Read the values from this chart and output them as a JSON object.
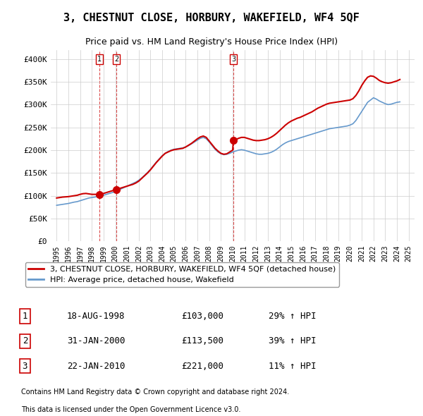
{
  "title": "3, CHESTNUT CLOSE, HORBURY, WAKEFIELD, WF4 5QF",
  "subtitle": "Price paid vs. HM Land Registry's House Price Index (HPI)",
  "transactions": [
    {
      "label": "1",
      "date": "18-AUG-1998",
      "price": 103000,
      "hpi_pct": "29% ↑ HPI",
      "x": 1998.63
    },
    {
      "label": "2",
      "date": "31-JAN-2000",
      "price": 113500,
      "hpi_pct": "39% ↑ HPI",
      "x": 2000.08
    },
    {
      "label": "3",
      "date": "22-JAN-2010",
      "price": 221000,
      "hpi_pct": "11% ↑ HPI",
      "x": 2010.06
    }
  ],
  "legend_property": "3, CHESTNUT CLOSE, HORBURY, WAKEFIELD, WF4 5QF (detached house)",
  "legend_hpi": "HPI: Average price, detached house, Wakefield",
  "footnote1": "Contains HM Land Registry data © Crown copyright and database right 2024.",
  "footnote2": "This data is licensed under the Open Government Licence v3.0.",
  "ylim": [
    0,
    420000
  ],
  "yticks": [
    0,
    50000,
    100000,
    150000,
    200000,
    250000,
    300000,
    350000,
    400000
  ],
  "ytick_labels": [
    "£0",
    "£50K",
    "£100K",
    "£150K",
    "£200K",
    "£250K",
    "£300K",
    "£350K",
    "£400K"
  ],
  "property_line_color": "#cc0000",
  "hpi_line_color": "#6699cc",
  "background_color": "#ffffff",
  "grid_color": "#cccccc",
  "hpi_data_x": [
    1995,
    1995.25,
    1995.5,
    1995.75,
    1996,
    1996.25,
    1996.5,
    1996.75,
    1997,
    1997.25,
    1997.5,
    1997.75,
    1998,
    1998.25,
    1998.5,
    1998.75,
    1999,
    1999.25,
    1999.5,
    1999.75,
    2000,
    2000.25,
    2000.5,
    2000.75,
    2001,
    2001.25,
    2001.5,
    2001.75,
    2002,
    2002.25,
    2002.5,
    2002.75,
    2003,
    2003.25,
    2003.5,
    2003.75,
    2004,
    2004.25,
    2004.5,
    2004.75,
    2005,
    2005.25,
    2005.5,
    2005.75,
    2006,
    2006.25,
    2006.5,
    2006.75,
    2007,
    2007.25,
    2007.5,
    2007.75,
    2008,
    2008.25,
    2008.5,
    2008.75,
    2009,
    2009.25,
    2009.5,
    2009.75,
    2010,
    2010.25,
    2010.5,
    2010.75,
    2011,
    2011.25,
    2011.5,
    2011.75,
    2012,
    2012.25,
    2012.5,
    2012.75,
    2013,
    2013.25,
    2013.5,
    2013.75,
    2014,
    2014.25,
    2014.5,
    2014.75,
    2015,
    2015.25,
    2015.5,
    2015.75,
    2016,
    2016.25,
    2016.5,
    2016.75,
    2017,
    2017.25,
    2017.5,
    2017.75,
    2018,
    2018.25,
    2018.5,
    2018.75,
    2019,
    2019.25,
    2019.5,
    2019.75,
    2020,
    2020.25,
    2020.5,
    2020.75,
    2021,
    2021.25,
    2021.5,
    2021.75,
    2022,
    2022.25,
    2022.5,
    2022.75,
    2023,
    2023.25,
    2023.5,
    2023.75,
    2024,
    2024.25
  ],
  "hpi_data_y": [
    79000,
    80000,
    81000,
    82000,
    83000,
    84500,
    86000,
    87000,
    89000,
    91000,
    93000,
    95000,
    96000,
    97000,
    98500,
    99500,
    101000,
    103000,
    105000,
    107000,
    109000,
    112000,
    115000,
    118000,
    121000,
    124000,
    127000,
    130000,
    134000,
    139000,
    145000,
    151000,
    158000,
    166000,
    174000,
    181000,
    188000,
    193000,
    197000,
    200000,
    202000,
    203000,
    204000,
    205000,
    207000,
    210000,
    214000,
    218000,
    222000,
    226000,
    228000,
    225000,
    218000,
    210000,
    202000,
    196000,
    192000,
    190000,
    191000,
    193000,
    196000,
    198000,
    200000,
    201000,
    200000,
    198000,
    196000,
    194000,
    192000,
    191000,
    191000,
    192000,
    193000,
    195000,
    198000,
    202000,
    207000,
    212000,
    216000,
    219000,
    221000,
    223000,
    225000,
    227000,
    229000,
    231000,
    233000,
    235000,
    237000,
    239000,
    241000,
    243000,
    245000,
    247000,
    248000,
    249000,
    250000,
    251000,
    252000,
    253000,
    255000,
    258000,
    265000,
    275000,
    285000,
    295000,
    305000,
    310000,
    315000,
    312000,
    308000,
    305000,
    302000,
    300000,
    301000,
    303000,
    305000,
    306000
  ],
  "property_data_x": [
    1995.0,
    1995.25,
    1995.5,
    1995.75,
    1996.0,
    1996.25,
    1996.5,
    1996.75,
    1997.0,
    1997.25,
    1997.5,
    1997.75,
    1998.0,
    1998.25,
    1998.5,
    1998.63,
    1998.75,
    1999.0,
    1999.25,
    1999.5,
    1999.75,
    2000.0,
    2000.08,
    2000.25,
    2000.5,
    2000.75,
    2001.0,
    2001.25,
    2001.5,
    2001.75,
    2002.0,
    2002.25,
    2002.5,
    2002.75,
    2003.0,
    2003.25,
    2003.5,
    2003.75,
    2004.0,
    2004.25,
    2004.5,
    2004.75,
    2005.0,
    2005.25,
    2005.5,
    2005.75,
    2006.0,
    2006.25,
    2006.5,
    2006.75,
    2007.0,
    2007.25,
    2007.5,
    2007.75,
    2008.0,
    2008.25,
    2008.5,
    2008.75,
    2009.0,
    2009.25,
    2009.5,
    2009.75,
    2010.0,
    2010.06,
    2010.25,
    2010.5,
    2010.75,
    2011.0,
    2011.25,
    2011.5,
    2011.75,
    2012.0,
    2012.25,
    2012.5,
    2012.75,
    2013.0,
    2013.25,
    2013.5,
    2013.75,
    2014.0,
    2014.25,
    2014.5,
    2014.75,
    2015.0,
    2015.25,
    2015.5,
    2015.75,
    2016.0,
    2016.25,
    2016.5,
    2016.75,
    2017.0,
    2017.25,
    2017.5,
    2017.75,
    2018.0,
    2018.25,
    2018.5,
    2018.75,
    2019.0,
    2019.25,
    2019.5,
    2019.75,
    2020.0,
    2020.25,
    2020.5,
    2020.75,
    2021.0,
    2021.25,
    2021.5,
    2021.75,
    2022.0,
    2022.25,
    2022.5,
    2022.75,
    2023.0,
    2023.25,
    2023.5,
    2023.75,
    2024.0,
    2024.25
  ],
  "property_data_y": [
    95000,
    96000,
    97000,
    97500,
    98000,
    99000,
    100000,
    101000,
    103000,
    104500,
    105000,
    104000,
    103000,
    103000,
    103000,
    103000,
    103500,
    105000,
    107000,
    109000,
    111000,
    113000,
    113500,
    115000,
    117000,
    119000,
    121000,
    123000,
    125000,
    128000,
    132000,
    138000,
    144000,
    150000,
    157000,
    165000,
    173000,
    180000,
    187000,
    193000,
    196000,
    199000,
    201000,
    202000,
    203000,
    204000,
    207000,
    211000,
    215000,
    220000,
    225000,
    229000,
    231000,
    228000,
    220000,
    212000,
    204000,
    198000,
    193000,
    191000,
    192000,
    196000,
    200000,
    221000,
    223000,
    226000,
    228000,
    228000,
    226000,
    224000,
    222000,
    221000,
    221000,
    222000,
    223000,
    225000,
    228000,
    232000,
    237000,
    243000,
    249000,
    255000,
    260000,
    264000,
    267000,
    270000,
    272000,
    275000,
    278000,
    281000,
    284000,
    288000,
    292000,
    295000,
    298000,
    301000,
    303000,
    304000,
    305000,
    306000,
    307000,
    308000,
    309000,
    310000,
    313000,
    320000,
    330000,
    342000,
    352000,
    360000,
    363000,
    362000,
    358000,
    353000,
    350000,
    348000,
    347000,
    348000,
    350000,
    352000,
    355000
  ]
}
